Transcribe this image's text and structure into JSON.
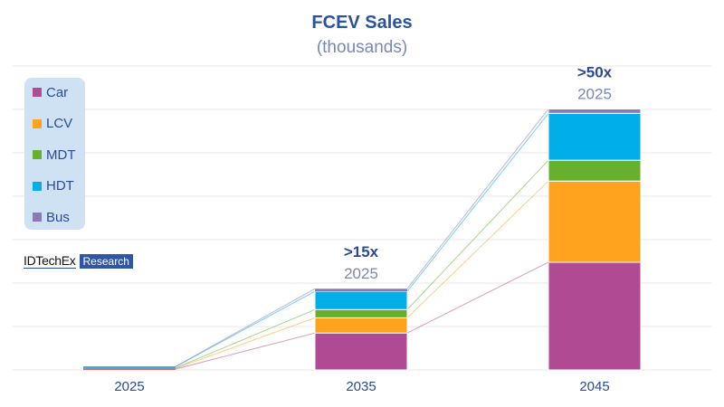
{
  "chart_data": {
    "type": "bar",
    "stacked": true,
    "title": "FCEV Sales",
    "subtitle": "(thousands)",
    "categories": [
      "2025",
      "2035",
      "2045"
    ],
    "series": [
      {
        "name": "Car",
        "color": "#b04a93",
        "values": [
          0.02,
          0.85,
          2.48
        ]
      },
      {
        "name": "LCV",
        "color": "#ffa31f",
        "values": [
          0.015,
          0.35,
          1.87
        ]
      },
      {
        "name": "MDT",
        "color": "#67b02e",
        "values": [
          0.01,
          0.19,
          0.48
        ]
      },
      {
        "name": "HDT",
        "color": "#00aee8",
        "values": [
          0.03,
          0.42,
          1.08
        ]
      },
      {
        "name": "Bus",
        "color": "#8a7ab8",
        "values": [
          0.005,
          0.06,
          0.1
        ]
      }
    ],
    "ylim": [
      0,
      7
    ],
    "y_axis_labels_shown": false,
    "grid": true,
    "legend_placement": "top-left",
    "annotations": [
      {
        "category": "2035",
        "bold": ">15x",
        "sub": "2025"
      },
      {
        "category": "2045",
        "bold": ">50x",
        "sub": "2025"
      }
    ]
  },
  "branding": {
    "name": "IDTechEx",
    "tag": "Research"
  }
}
